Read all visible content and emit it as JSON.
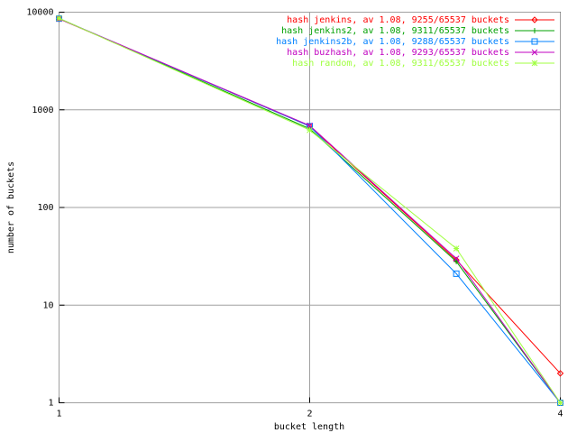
{
  "chart_data": {
    "type": "line",
    "xlabel": "bucket length",
    "ylabel": "number of buckets",
    "x": [
      1,
      2,
      3,
      4
    ],
    "xlim": [
      1,
      4
    ],
    "xticks": [
      1,
      2,
      4
    ],
    "xlog": true,
    "ylim": [
      1,
      10000
    ],
    "yticks": [
      1,
      10,
      100,
      1000,
      10000
    ],
    "ylog": true,
    "grid": true,
    "legend": "top-right",
    "series": [
      {
        "name": "hash jenkins, av 1.08, 9255/65537 buckets",
        "color": "#ff0000",
        "marker": "diamond",
        "values": [
          8544,
          680,
          29,
          2
        ]
      },
      {
        "name": "hash jenkins2, av 1.08, 9311/65537 buckets",
        "color": "#00a000",
        "marker": "plus",
        "values": [
          8642,
          640,
          28,
          1
        ]
      },
      {
        "name": "hash jenkins2b, av 1.08, 9288/65537 buckets",
        "color": "#0080ff",
        "marker": "square",
        "values": [
          8586,
          680,
          21,
          1
        ]
      },
      {
        "name": "hash buzhash, av 1.08, 9293/65537 buckets",
        "color": "#c000c0",
        "marker": "cross",
        "values": [
          8572,
          690,
          30,
          1
        ]
      },
      {
        "name": "hash random, av 1.08, 9311/65537 buckets",
        "color": "#a0ff40",
        "marker": "star",
        "values": [
          8652,
          620,
          38,
          1
        ]
      }
    ]
  }
}
